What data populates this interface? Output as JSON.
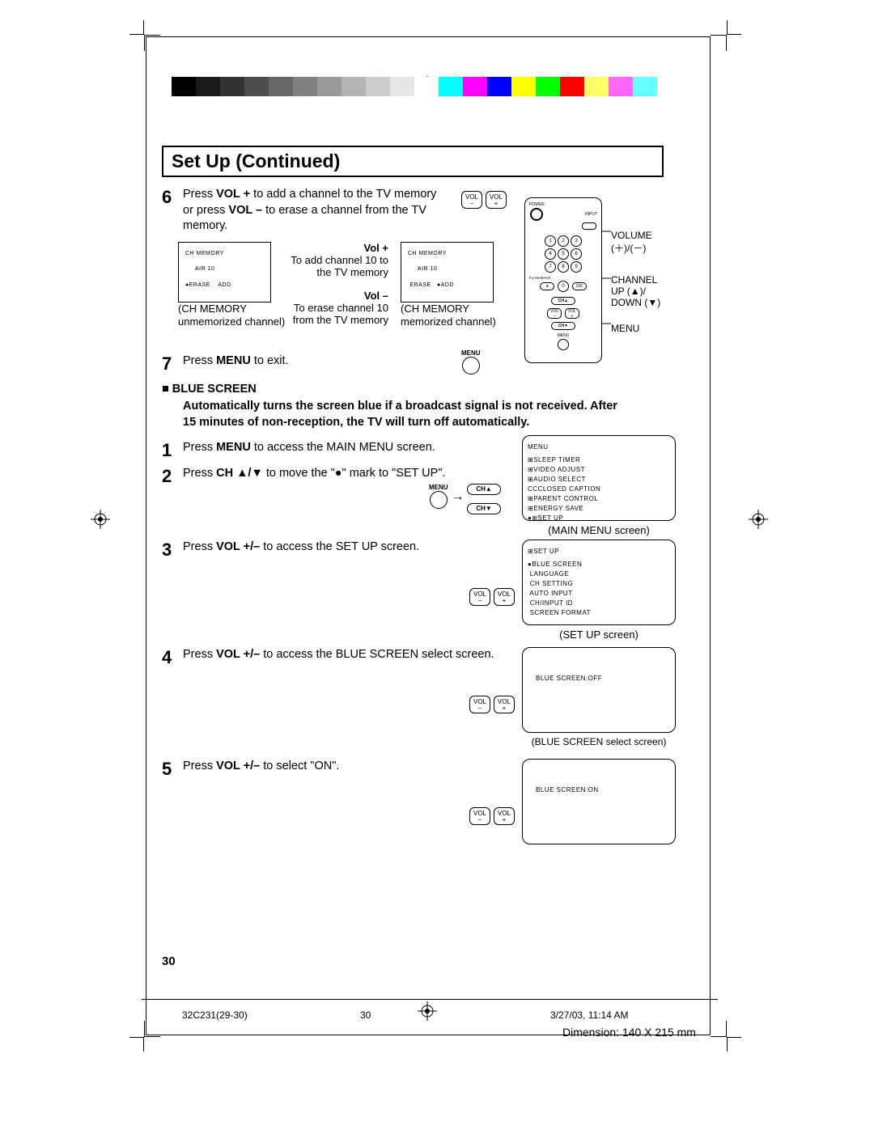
{
  "colorbar": [
    "#000000",
    "#1a1a1a",
    "#333333",
    "#4d4d4d",
    "#666666",
    "#808080",
    "#999999",
    "#b3b3b3",
    "#cccccc",
    "#e6e6e6",
    "#ffffff",
    "#00ffff",
    "#ff00ff",
    "#0000ff",
    "#ffff00",
    "#00ff00",
    "#ff0000",
    "#ffff66",
    "#ff66ff",
    "#66ffff",
    "#ffffff"
  ],
  "title": "Set Up (Continued)",
  "step6": {
    "num": "6",
    "text_parts": [
      "Press ",
      "VOL +",
      " to add a channel to the TV memory or press ",
      "VOL –",
      " to erase a channel from the TV memory."
    ]
  },
  "vol_plus_label": "Vol +",
  "vol_plus_desc": "To add channel 10 to the TV memory",
  "vol_minus_label": "Vol –",
  "vol_minus_desc": "To erase channel 10 from the TV memory",
  "ch_left": {
    "l1": "CH MEMORY",
    "l2": "AIR 10",
    "l3": "●ERASE    ADD",
    "cap1": "(CH MEMORY",
    "cap2": "unmemorized channel)"
  },
  "ch_right": {
    "l1": "CH MEMORY",
    "l2": "AIR 10",
    "l3": " ERASE   ●ADD",
    "cap1": "(CH MEMORY",
    "cap2": "memorized channel)"
  },
  "step7": {
    "num": "7",
    "text_parts": [
      "Press ",
      "MENU",
      " to exit."
    ]
  },
  "menu_label": "MENU",
  "blue_screen_head": "BLUE SCREEN",
  "blue_screen_para": "Automatically turns the screen blue if a broadcast signal is not received. After 15 minutes of non-reception, the TV will turn off automatically.",
  "step1": {
    "num": "1",
    "text_parts": [
      "Press ",
      "MENU",
      " to access the MAIN MENU screen."
    ]
  },
  "step2": {
    "num": "2",
    "text_parts": [
      "Press ",
      "CH ▲/▼",
      " to move the \"●\" mark to \"SET UP\"."
    ]
  },
  "step3": {
    "num": "3",
    "text_parts": [
      "Press ",
      "VOL +/–",
      " to access the SET UP screen."
    ]
  },
  "step4": {
    "num": "4",
    "text_parts": [
      "Press ",
      "VOL +/–",
      " to access the BLUE SCREEN select screen."
    ]
  },
  "step5": {
    "num": "5",
    "text_parts": [
      "Press ",
      "VOL +/–",
      " to select \"ON\"."
    ]
  },
  "main_menu_screen": {
    "title": "MENU",
    "items": [
      "⊞SLEEP TIMER",
      "⊞VIDEO ADJUST",
      "⊞AUDIO SELECT",
      "CCCLOSED CAPTION",
      "⊞PARENT CONTROL",
      "⊞ENERGY SAVE",
      "●⊞SET UP"
    ],
    "caption": "(MAIN MENU screen)"
  },
  "setup_screen": {
    "title": "⊞SET UP",
    "items": [
      "●BLUE SCREEN",
      " LANGUAGE",
      " CH SETTING",
      " AUTO INPUT",
      " CH/INPUT ID",
      " SCREEN FORMAT"
    ],
    "caption": "(SET UP screen)"
  },
  "bs_off_screen": {
    "text": "BLUE SCREEN:OFF",
    "caption": "(BLUE SCREEN select screen)"
  },
  "bs_on_screen": {
    "text": "BLUE SCREEN:ON"
  },
  "vol_minus_btn": "VOL\n–",
  "vol_plus_btn": "VOL\n+",
  "ch_up_btn": "CH▲",
  "ch_dn_btn": "CH▼",
  "remote_labels": {
    "volume": "VOLUME",
    "vol_sym": "(＋)/(－)",
    "channel": "CHANNEL",
    "updown": "UP (▲)/\nDOWN (▼)",
    "menu": "MENU",
    "power": "POWER",
    "input": "INPUT"
  },
  "remote_nums": [
    "1",
    "2",
    "3",
    "4",
    "5",
    "6",
    "7",
    "8",
    "9",
    "0",
    "100"
  ],
  "remote_flashback": "FLASHBACK",
  "page_num": "30",
  "footer_code": "32C231(29-30)",
  "footer_pg": "30",
  "footer_date": "3/27/03, 11:14 AM",
  "dimension": "Dimension: 140  X 215 mm",
  "arrow": "→"
}
